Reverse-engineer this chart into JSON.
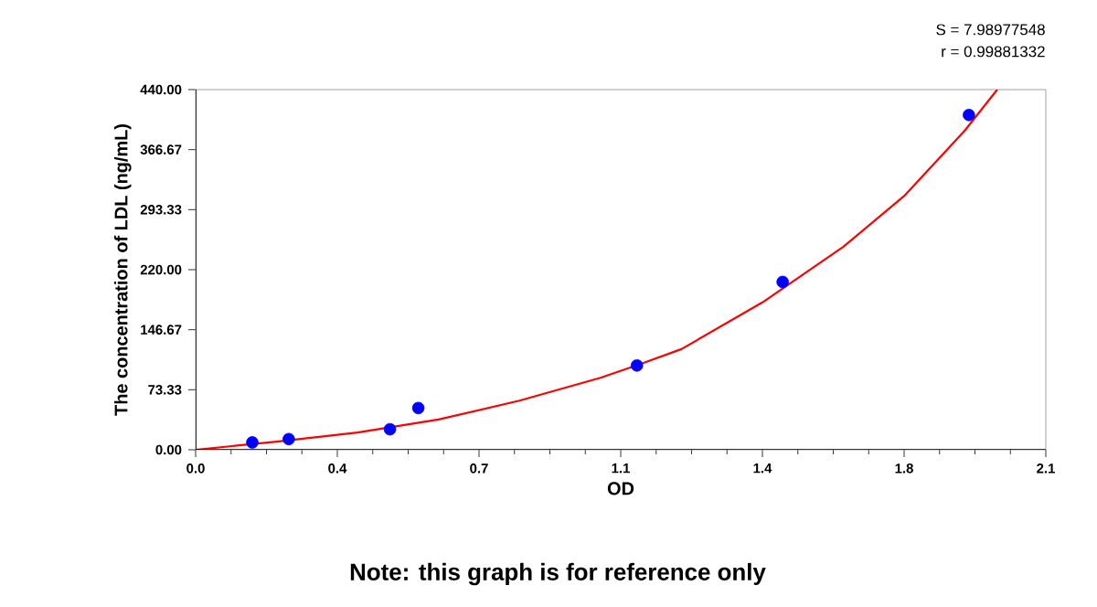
{
  "chart_data": {
    "type": "scatter",
    "xlabel": "OD",
    "ylabel": "The concentration of LDL (ng/mL)",
    "annotations": [
      "S = 7.98977548",
      "r = 0.99881332",
      "Note: this graph is for reference only"
    ],
    "xlim": [
      0,
      2.1
    ],
    "ylim": [
      0,
      440
    ],
    "xticks": [
      {
        "value": 0,
        "label": "0.0"
      },
      {
        "value": 0.35,
        "label": "0.4"
      },
      {
        "value": 0.7,
        "label": "0.7"
      },
      {
        "value": 1.05,
        "label": "1.1"
      },
      {
        "value": 1.4,
        "label": "1.4"
      },
      {
        "value": 1.75,
        "label": "1.8"
      },
      {
        "value": 2.1,
        "label": "2.1"
      }
    ],
    "yticks": [
      {
        "value": 0,
        "label": "0.00"
      },
      73.33,
      146.67,
      {
        "value": 220,
        "label": "220.00"
      },
      293.33,
      366.67,
      {
        "value": 440,
        "label": "440.00"
      }
    ],
    "series": [
      {
        "color": "#0000ff",
        "marker": "circle",
        "x": [
          0.14,
          0.23,
          0.48,
          0.55,
          1.09,
          1.45,
          1.91
        ],
        "values": [
          9,
          13,
          25,
          51,
          103,
          205,
          409
        ]
      },
      {
        "type": "line",
        "color": "#ff0000",
        "marker": "none",
        "line_style": "solid",
        "x": [
          0,
          0.2,
          0.4,
          0.6,
          0.8,
          1.0,
          1.1,
          1.2,
          1.4,
          1.6,
          1.75,
          1.9,
          1.98
        ],
        "values": [
          0,
          10,
          21,
          37,
          60,
          88,
          105,
          123,
          180,
          248,
          310,
          390,
          440
        ]
      }
    ]
  }
}
